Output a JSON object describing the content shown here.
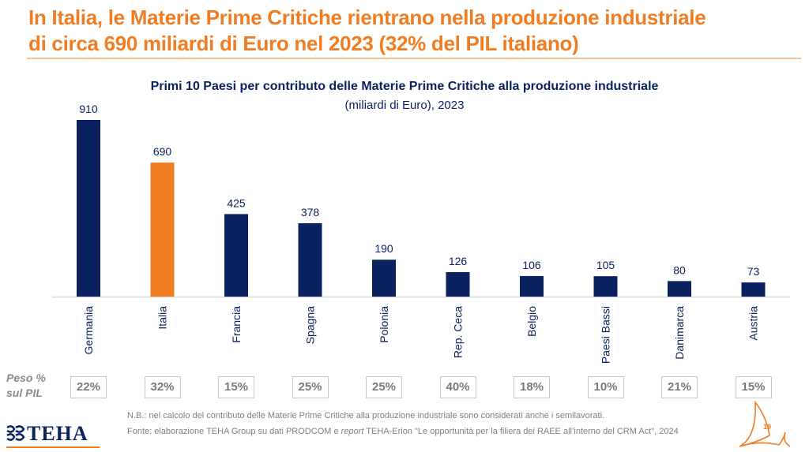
{
  "header": {
    "title_line1": "In Italia, le Materie Prime Critiche rientrano nella produzione industriale",
    "title_line2": "di circa 690 miliardi di Euro nel 2023 (32% del PIL italiano)"
  },
  "chart_data": {
    "type": "bar",
    "title": "Primi 10 Paesi per contributo delle Materie Prime Critiche alla produzione industriale",
    "subtitle": "(miliardi di Euro), 2023",
    "xlabel": "",
    "ylabel": "",
    "ylim": [
      0,
      910
    ],
    "grid": false,
    "categories": [
      "Germania",
      "Italia",
      "Francia",
      "Spagna",
      "Polonia",
      "Rep. Ceca",
      "Belgio",
      "Paesi Bassi",
      "Danimarca",
      "Austria"
    ],
    "values": [
      910,
      690,
      425,
      378,
      190,
      126,
      106,
      105,
      80,
      73
    ],
    "value_labels": [
      "910",
      "690",
      "425",
      "378",
      "190",
      "126",
      "106",
      "105",
      "80",
      "73"
    ],
    "highlight_index": 1,
    "colors": {
      "default": "#0b2260",
      "highlight": "#f07d22"
    },
    "peso_label_line1": "Peso %",
    "peso_label_line2": "sul PIL",
    "peso_pil": [
      "22%",
      "32%",
      "15%",
      "25%",
      "25%",
      "40%",
      "18%",
      "10%",
      "21%",
      "15%"
    ]
  },
  "footer": {
    "note": "N.B.: nel calcolo del contributo delle Materie Prime Critiche alla produzione industriale sono considerati anche i semilavorati.",
    "source_prefix": "Fonte: elaborazione TEHA Group su dati PRODCOM e ",
    "source_italic": "report",
    "source_suffix": " TEHA-Erion \"Le opportunità per la filiera dei RAEE all’interno del CRM Act\", 2024",
    "logo_text": "TEHA",
    "page_number": "19"
  }
}
